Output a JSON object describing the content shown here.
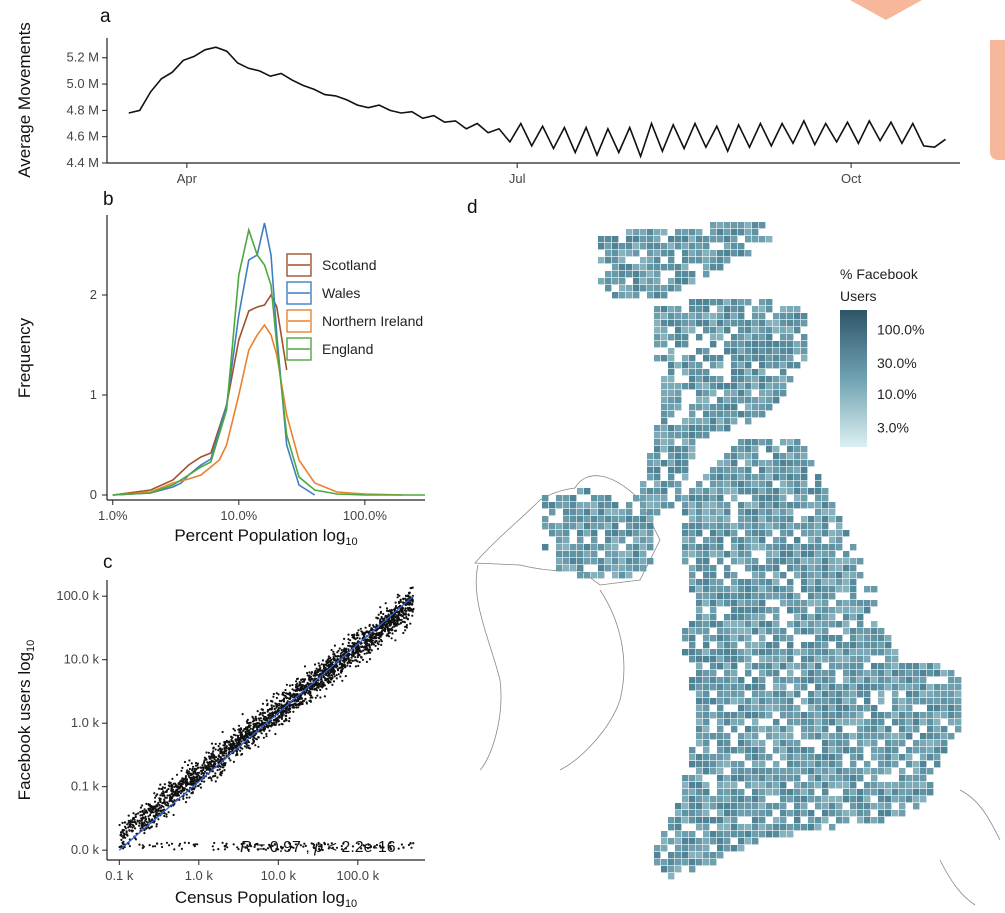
{
  "panels": {
    "a": "a",
    "b": "b",
    "c": "c",
    "d": "d"
  },
  "colors": {
    "scotland": "#A0522D",
    "wales": "#3F7FBF",
    "northern_ireland": "#E8822F",
    "england": "#4DA83F",
    "map_fill": "#6E9FAE",
    "fit_line": "#2F5FD0"
  },
  "chart_data": [
    {
      "id": "a",
      "type": "line",
      "title": "",
      "ylabel": "Average Movements",
      "xlabel": "",
      "xticks": [
        "Apr",
        "Jul",
        "Oct"
      ],
      "xtick_dates": [
        "2020-04-01",
        "2020-07-01",
        "2020-10-01"
      ],
      "xlim": [
        "2020-03-10",
        "2020-10-31"
      ],
      "yticks": [
        "5.2 M",
        "5.0 M",
        "4.8 M",
        "4.6 M",
        "4.4 M"
      ],
      "ytick_values": [
        5.2,
        5.0,
        4.8,
        4.6,
        4.4
      ],
      "ylim": [
        4.4,
        5.35
      ],
      "grid": false,
      "series": [
        {
          "x": [
            "2020-03-16",
            "2020-03-19",
            "2020-03-22",
            "2020-03-25",
            "2020-03-28",
            "2020-03-31",
            "2020-04-03",
            "2020-04-06",
            "2020-04-09",
            "2020-04-12",
            "2020-04-15",
            "2020-04-18",
            "2020-04-21",
            "2020-04-24",
            "2020-04-27",
            "2020-04-30",
            "2020-05-03",
            "2020-05-06",
            "2020-05-09",
            "2020-05-12",
            "2020-05-15",
            "2020-05-18",
            "2020-05-21",
            "2020-05-24",
            "2020-05-27",
            "2020-05-30",
            "2020-06-02",
            "2020-06-05",
            "2020-06-08",
            "2020-06-11",
            "2020-06-14",
            "2020-06-17",
            "2020-06-20",
            "2020-06-23",
            "2020-06-26",
            "2020-06-29",
            "2020-07-02",
            "2020-07-05",
            "2020-07-08",
            "2020-07-11",
            "2020-07-14",
            "2020-07-17",
            "2020-07-20",
            "2020-07-23",
            "2020-07-26",
            "2020-07-29",
            "2020-08-01",
            "2020-08-04",
            "2020-08-07",
            "2020-08-10",
            "2020-08-13",
            "2020-08-16",
            "2020-08-19",
            "2020-08-22",
            "2020-08-25",
            "2020-08-28",
            "2020-08-31",
            "2020-09-03",
            "2020-09-06",
            "2020-09-09",
            "2020-09-12",
            "2020-09-15",
            "2020-09-18",
            "2020-09-21",
            "2020-09-24",
            "2020-09-27",
            "2020-09-30",
            "2020-10-03",
            "2020-10-06",
            "2020-10-09",
            "2020-10-12",
            "2020-10-15",
            "2020-10-18",
            "2020-10-21",
            "2020-10-24",
            "2020-10-27"
          ],
          "y": [
            4.78,
            4.8,
            4.94,
            5.04,
            5.09,
            5.18,
            5.21,
            5.26,
            5.28,
            5.25,
            5.16,
            5.12,
            5.1,
            5.06,
            5.08,
            5.03,
            4.99,
            4.96,
            4.92,
            4.91,
            4.88,
            4.84,
            4.82,
            4.84,
            4.8,
            4.78,
            4.79,
            4.74,
            4.76,
            4.71,
            4.72,
            4.66,
            4.7,
            4.63,
            4.66,
            4.56,
            4.7,
            4.53,
            4.68,
            4.51,
            4.67,
            4.48,
            4.67,
            4.46,
            4.66,
            4.48,
            4.67,
            4.45,
            4.7,
            4.49,
            4.69,
            4.51,
            4.7,
            4.52,
            4.68,
            4.49,
            4.69,
            4.52,
            4.7,
            4.53,
            4.7,
            4.55,
            4.72,
            4.54,
            4.7,
            4.56,
            4.71,
            4.55,
            4.72,
            4.57,
            4.71,
            4.55,
            4.7,
            4.53,
            4.52,
            4.58
          ]
        }
      ]
    },
    {
      "id": "b",
      "type": "line",
      "title": "",
      "ylabel": "Frequency",
      "xlabel": "Percent Population log",
      "xlabel_sub": "10",
      "log_x": true,
      "xlim": [
        0.9,
        300
      ],
      "xticks": [
        "1.0%",
        "10.0%",
        "100.0%"
      ],
      "xtick_values": [
        1,
        10,
        100
      ],
      "yticks": [
        "0",
        "1",
        "2"
      ],
      "ytick_values": [
        0,
        1,
        2
      ],
      "ylim": [
        -0.05,
        2.8
      ],
      "grid": false,
      "legend": {
        "position": "top-right",
        "entries": [
          "Scotland",
          "Wales",
          "Northern Ireland",
          "England"
        ]
      },
      "series": [
        {
          "name": "Scotland",
          "color": "#A0522D",
          "x": [
            1,
            2,
            3,
            4,
            5,
            6,
            8,
            10,
            12,
            14,
            16,
            18,
            20,
            22,
            24
          ],
          "y": [
            0,
            0.05,
            0.15,
            0.3,
            0.38,
            0.42,
            0.9,
            1.55,
            1.84,
            1.88,
            1.9,
            2.0,
            1.88,
            1.55,
            1.25
          ]
        },
        {
          "name": "Wales",
          "color": "#3F7FBF",
          "x": [
            1,
            2,
            3,
            3.5,
            4,
            5,
            6,
            8,
            10,
            12,
            14,
            16,
            18,
            20,
            24,
            30,
            40
          ],
          "y": [
            0,
            0.02,
            0.08,
            0.12,
            0.2,
            0.3,
            0.36,
            0.9,
            1.8,
            2.35,
            2.4,
            2.72,
            2.4,
            1.6,
            0.5,
            0.1,
            0
          ]
        },
        {
          "name": "Northern Ireland",
          "color": "#E8822F",
          "x": [
            1,
            2,
            3,
            4,
            5,
            6,
            7,
            8,
            10,
            12,
            14,
            16,
            18,
            20,
            24,
            30,
            40,
            60,
            100,
            200
          ],
          "y": [
            0,
            0.03,
            0.12,
            0.16,
            0.2,
            0.28,
            0.35,
            0.5,
            1.0,
            1.45,
            1.6,
            1.7,
            1.6,
            1.4,
            0.8,
            0.35,
            0.12,
            0.03,
            0.01,
            0
          ]
        },
        {
          "name": "England",
          "color": "#4DA83F",
          "x": [
            1,
            2,
            3,
            4,
            5,
            6,
            8,
            10,
            12,
            14,
            16,
            18,
            20,
            24,
            30,
            40,
            60,
            100,
            300
          ],
          "y": [
            0,
            0.02,
            0.1,
            0.2,
            0.28,
            0.33,
            0.85,
            2.2,
            2.65,
            2.4,
            2.3,
            2.1,
            1.5,
            0.6,
            0.18,
            0.05,
            0.01,
            0,
            0
          ]
        }
      ]
    },
    {
      "id": "c",
      "type": "scatter",
      "title": "",
      "xlabel": "Census Population log",
      "xlabel_sub": "10",
      "ylabel": "Facebook users log",
      "ylabel_sub": "10",
      "log_x": true,
      "log_y": true,
      "xlim": [
        0.07,
        700
      ],
      "ylim": [
        0.007,
        180
      ],
      "xticks": [
        "0.1 k",
        "1.0 k",
        "10.0 k",
        "100.0 k"
      ],
      "xtick_values": [
        0.1,
        1,
        10,
        100
      ],
      "yticks": [
        "0.0 k",
        "0.1 k",
        "1.0 k",
        "10.0 k",
        "100.0 k"
      ],
      "ytick_values": [
        0.01,
        0.1,
        1,
        10,
        100
      ],
      "grid": false,
      "annotation": {
        "r_label": "R",
        "r_text": " = 0.97 , ",
        "p_label": "p",
        "p_text": " < 2.2e-16"
      },
      "fit_line": {
        "x": [
          0.1,
          500
        ],
        "y": [
          0.01,
          100
        ]
      },
      "summary": {
        "n_points_approx": 9000,
        "x_range": [
          0.1,
          500
        ],
        "trend": "y ≈ 0.16·x with floor near 0.01 k"
      }
    },
    {
      "id": "d",
      "type": "heatmap",
      "title": "",
      "legend_title_lines": [
        "% Facebook",
        "Users"
      ],
      "colorbar_ticks": [
        "100.0%",
        "30.0%",
        "10.0%",
        "3.0%"
      ],
      "colorbar_values": [
        100,
        30,
        10,
        3
      ],
      "colorbar_scale": "log",
      "geography": "Great Britain and Northern Ireland grid cells"
    }
  ]
}
